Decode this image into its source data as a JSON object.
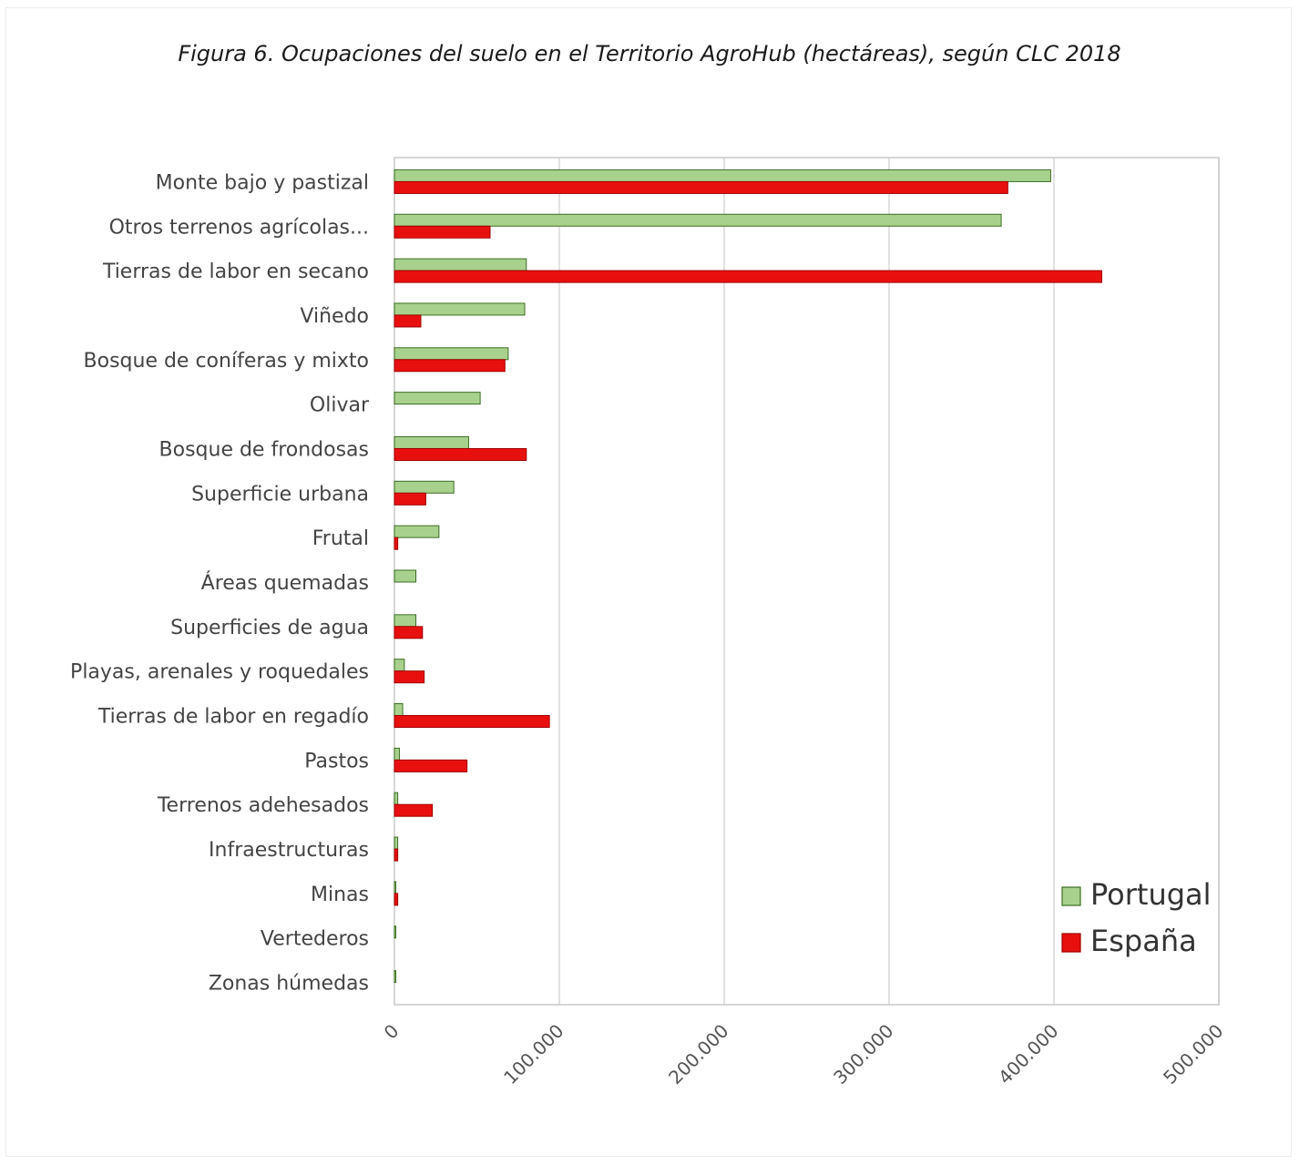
{
  "figure": {
    "caption": "Figura 6. Ocupaciones del suelo en el Territorio AgroHub (hectáreas), según CLC 2018"
  },
  "chart_data": {
    "type": "bar",
    "orientation": "horizontal",
    "categories": [
      "Monte bajo y pastizal",
      "Otros terrenos agrícolas...",
      "Tierras de labor en secano",
      "Viñedo",
      "Bosque de coníferas y mixto",
      "Olivar",
      "Bosque de frondosas",
      "Superficie urbana",
      "Frutal",
      "Áreas quemadas",
      "Superficies de agua",
      "Playas, arenales y roquedales",
      "Tierras de labor en regadío",
      "Pastos",
      "Terrenos adehesados",
      "Infraestructuras",
      "Minas",
      "Vertederos",
      "Zonas húmedas"
    ],
    "series": [
      {
        "name": "Portugal",
        "color": "#a9d18e",
        "stroke": "#3b6e22",
        "values": [
          398000,
          368000,
          80000,
          79000,
          69000,
          52000,
          45000,
          36000,
          27000,
          13000,
          13000,
          6000,
          5000,
          3000,
          2000,
          2000,
          500,
          300,
          300
        ]
      },
      {
        "name": "España",
        "color": "#e8100f",
        "stroke": "#a00000",
        "values": [
          372000,
          58000,
          429000,
          16000,
          67000,
          0,
          80000,
          19000,
          2000,
          0,
          17000,
          18000,
          94000,
          44000,
          23000,
          2000,
          2000,
          0,
          0
        ]
      }
    ],
    "xlim": [
      0,
      500000
    ],
    "xticks": [
      0,
      100000,
      200000,
      300000,
      400000,
      500000
    ],
    "xtick_labels": [
      "0",
      "100.000",
      "200.000",
      "300.000",
      "400.000",
      "500.000"
    ],
    "grid": true,
    "legend_position": "bottom-right",
    "title": "",
    "xlabel": "",
    "ylabel": ""
  }
}
